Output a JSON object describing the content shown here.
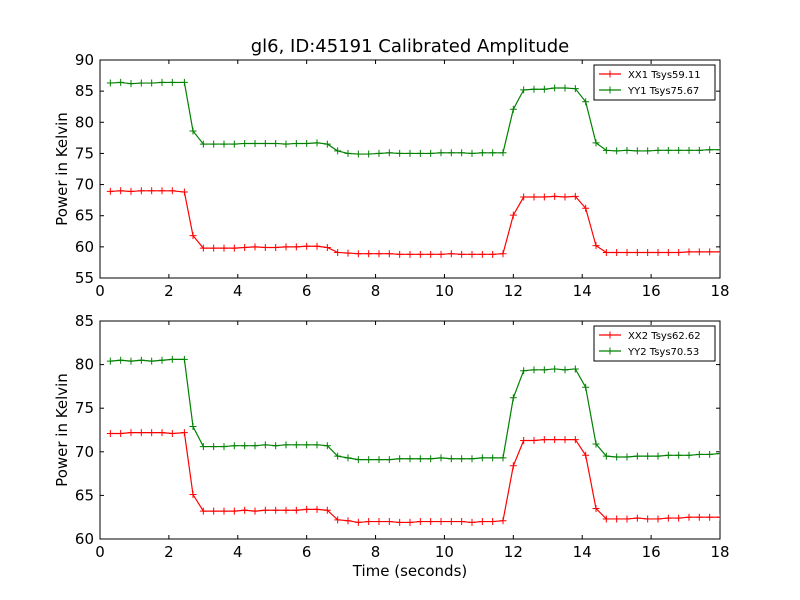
{
  "figure": {
    "title": "gl6, ID:45191 Calibrated Amplitude",
    "xlabel": "Time (seconds)"
  },
  "chart_data": [
    {
      "type": "line",
      "ylabel": "Power in Kelvin",
      "xlim": [
        0,
        18
      ],
      "ylim": [
        55,
        90
      ],
      "xticks": [
        "0",
        "2",
        "4",
        "6",
        "8",
        "10",
        "12",
        "14",
        "16",
        "18"
      ],
      "yticks": [
        "55",
        "60",
        "65",
        "70",
        "75",
        "80",
        "85",
        "90"
      ],
      "grid": false,
      "legend_position": "top-right",
      "x": [
        0.3,
        0.6,
        0.9,
        1.2,
        1.5,
        1.8,
        2.1,
        2.45,
        2.7,
        3.0,
        3.3,
        3.6,
        3.9,
        4.2,
        4.5,
        4.8,
        5.1,
        5.4,
        5.7,
        6.0,
        6.3,
        6.6,
        6.9,
        7.2,
        7.5,
        7.8,
        8.1,
        8.4,
        8.7,
        9.0,
        9.3,
        9.6,
        9.9,
        10.2,
        10.5,
        10.8,
        11.1,
        11.4,
        11.7,
        12.0,
        12.3,
        12.6,
        12.9,
        13.2,
        13.5,
        13.8,
        14.1,
        14.4,
        14.7,
        15.0,
        15.3,
        15.6,
        15.9,
        16.2,
        16.5,
        16.8,
        17.1,
        17.4,
        17.7,
        18.0
      ],
      "series": [
        {
          "name": "XX1 Tsys59.11",
          "color": "#ff0000",
          "values": [
            68.9,
            69.0,
            68.9,
            69.0,
            69.0,
            69.0,
            69.0,
            68.8,
            61.8,
            59.8,
            59.8,
            59.8,
            59.8,
            59.9,
            60.0,
            59.9,
            59.9,
            60.0,
            60.0,
            60.1,
            60.1,
            59.9,
            59.1,
            59.0,
            58.9,
            58.9,
            58.9,
            58.9,
            58.8,
            58.8,
            58.8,
            58.8,
            58.8,
            58.9,
            58.8,
            58.8,
            58.8,
            58.8,
            58.9,
            65.1,
            68.0,
            68.0,
            68.0,
            68.1,
            68.0,
            68.1,
            66.2,
            60.2,
            59.1,
            59.1,
            59.1,
            59.1,
            59.1,
            59.1,
            59.1,
            59.1,
            59.2,
            59.2,
            59.2,
            59.2
          ]
        },
        {
          "name": "YY1 Tsys75.67",
          "color": "#008000",
          "values": [
            86.3,
            86.4,
            86.2,
            86.3,
            86.3,
            86.4,
            86.4,
            86.4,
            78.6,
            76.5,
            76.5,
            76.5,
            76.5,
            76.6,
            76.6,
            76.6,
            76.6,
            76.5,
            76.6,
            76.6,
            76.7,
            76.5,
            75.4,
            75.0,
            74.9,
            74.9,
            75.0,
            75.1,
            75.0,
            75.0,
            75.0,
            75.0,
            75.1,
            75.1,
            75.1,
            75.0,
            75.1,
            75.1,
            75.1,
            82.1,
            85.2,
            85.3,
            85.3,
            85.5,
            85.5,
            85.4,
            83.3,
            76.7,
            75.5,
            75.4,
            75.5,
            75.4,
            75.4,
            75.5,
            75.5,
            75.5,
            75.5,
            75.5,
            75.6,
            75.6
          ]
        }
      ]
    },
    {
      "type": "line",
      "ylabel": "Power in Kelvin",
      "xlim": [
        0,
        18
      ],
      "ylim": [
        60,
        85
      ],
      "xticks": [
        "0",
        "2",
        "4",
        "6",
        "8",
        "10",
        "12",
        "14",
        "16",
        "18"
      ],
      "yticks": [
        "60",
        "65",
        "70",
        "75",
        "80",
        "85"
      ],
      "grid": false,
      "legend_position": "top-right",
      "x": [
        0.3,
        0.6,
        0.9,
        1.2,
        1.5,
        1.8,
        2.1,
        2.45,
        2.7,
        3.0,
        3.3,
        3.6,
        3.9,
        4.2,
        4.5,
        4.8,
        5.1,
        5.4,
        5.7,
        6.0,
        6.3,
        6.6,
        6.9,
        7.2,
        7.5,
        7.8,
        8.1,
        8.4,
        8.7,
        9.0,
        9.3,
        9.6,
        9.9,
        10.2,
        10.5,
        10.8,
        11.1,
        11.4,
        11.7,
        12.0,
        12.3,
        12.6,
        12.9,
        13.2,
        13.5,
        13.8,
        14.1,
        14.4,
        14.7,
        15.0,
        15.3,
        15.6,
        15.9,
        16.2,
        16.5,
        16.8,
        17.1,
        17.4,
        17.7,
        18.0
      ],
      "series": [
        {
          "name": "XX2 Tsys62.62",
          "color": "#ff0000",
          "values": [
            72.1,
            72.1,
            72.2,
            72.2,
            72.2,
            72.2,
            72.1,
            72.2,
            65.1,
            63.2,
            63.2,
            63.2,
            63.2,
            63.3,
            63.2,
            63.3,
            63.3,
            63.3,
            63.3,
            63.4,
            63.4,
            63.3,
            62.2,
            62.1,
            61.9,
            62.0,
            62.0,
            62.0,
            61.9,
            61.9,
            62.0,
            62.0,
            62.0,
            62.0,
            62.0,
            61.9,
            62.0,
            62.0,
            62.1,
            68.4,
            71.3,
            71.3,
            71.4,
            71.4,
            71.4,
            71.4,
            69.6,
            63.5,
            62.3,
            62.3,
            62.3,
            62.4,
            62.3,
            62.3,
            62.4,
            62.4,
            62.5,
            62.5,
            62.5,
            62.5
          ]
        },
        {
          "name": "YY2 Tsys70.53",
          "color": "#008000",
          "values": [
            80.4,
            80.5,
            80.4,
            80.5,
            80.4,
            80.5,
            80.6,
            80.6,
            72.9,
            70.6,
            70.6,
            70.6,
            70.7,
            70.7,
            70.7,
            70.8,
            70.7,
            70.8,
            70.8,
            70.8,
            70.8,
            70.7,
            69.5,
            69.3,
            69.1,
            69.1,
            69.1,
            69.1,
            69.2,
            69.2,
            69.2,
            69.2,
            69.3,
            69.2,
            69.2,
            69.2,
            69.3,
            69.3,
            69.3,
            76.2,
            79.3,
            79.4,
            79.4,
            79.5,
            79.4,
            79.5,
            77.4,
            70.9,
            69.5,
            69.4,
            69.4,
            69.5,
            69.5,
            69.5,
            69.6,
            69.6,
            69.6,
            69.7,
            69.7,
            69.8
          ]
        }
      ]
    }
  ]
}
